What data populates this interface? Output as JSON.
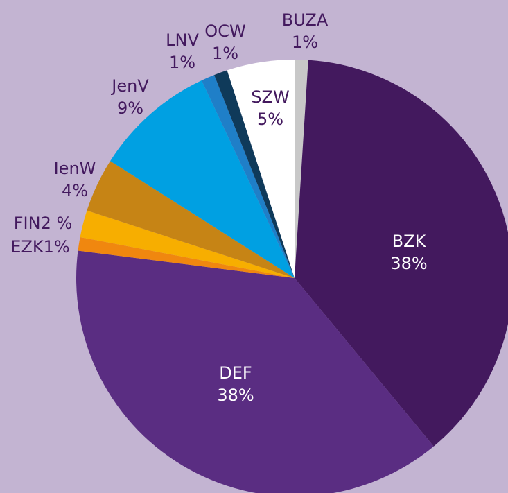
{
  "chart_data": {
    "type": "pie",
    "categories": [
      "BUZA",
      "BZK",
      "DEF",
      "EZK",
      "FIN",
      "IenW",
      "JenV",
      "LNV",
      "OCW",
      "SZW"
    ],
    "values": [
      1,
      38,
      38,
      1,
      2,
      4,
      9,
      1,
      1,
      5
    ],
    "value_labels": [
      "1%",
      "38%",
      "38%",
      "1%",
      "2 %",
      "4%",
      "9%",
      "1%",
      "1%",
      "5%"
    ],
    "colors": [
      "#c8c8c8",
      "#43195e",
      "#5a2d82",
      "#f0870f",
      "#f7ae00",
      "#c68415",
      "#00a0e2",
      "#1f7fc8",
      "#0f3a5a",
      "#ffffff"
    ]
  }
}
